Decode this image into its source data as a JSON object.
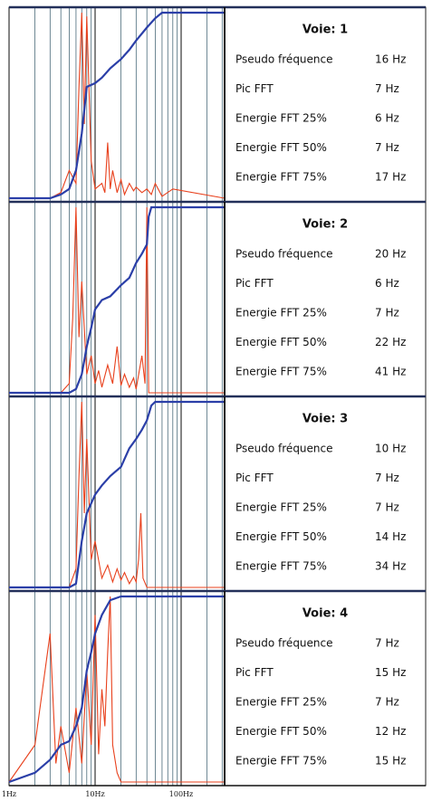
{
  "chart_data": {
    "type": "line",
    "xscale": "log",
    "xlim": [
      1,
      320
    ],
    "ylim": [
      0,
      100
    ],
    "xticks": [
      {
        "value": 1,
        "label": "1Hz"
      },
      {
        "value": 10,
        "label": "10Hz"
      },
      {
        "value": 100,
        "label": "100Hz"
      }
    ],
    "xgrid": [
      1,
      2,
      3,
      4,
      5,
      6,
      7,
      8,
      9,
      10,
      20,
      30,
      40,
      50,
      60,
      70,
      80,
      90,
      100,
      200,
      300
    ],
    "panels": [
      {
        "title": "Voie: 1",
        "series": [
          {
            "color": "#e8401c",
            "x": [
              1,
              3,
              4,
              5,
              6,
              6.5,
              7,
              7.5,
              8,
              9,
              10,
              12,
              13,
              14,
              15,
              16,
              18,
              20,
              22,
              25,
              28,
              30,
              35,
              40,
              45,
              50,
              60,
              80,
              320
            ],
            "values": [
              0,
              0,
              3,
              15,
              8,
              60,
              100,
              40,
              98,
              20,
              5,
              8,
              3,
              30,
              5,
              15,
              3,
              10,
              2,
              8,
              4,
              6,
              3,
              5,
              2,
              8,
              1,
              5,
              0
            ]
          },
          {
            "color": "#2b3fa8",
            "x": [
              1,
              3,
              4,
              5,
              6,
              7,
              8,
              10,
              12,
              15,
              20,
              25,
              30,
              40,
              50,
              60,
              320
            ],
            "values": [
              0,
              0,
              2,
              5,
              15,
              35,
              60,
              62,
              65,
              70,
              75,
              80,
              85,
              92,
              97,
              100,
              100
            ]
          }
        ],
        "table": [
          [
            "Pseudo fréquence",
            "16 Hz"
          ],
          [
            "Pic FFT",
            "7 Hz"
          ],
          [
            "Energie FFT 25%",
            "6 Hz"
          ],
          [
            "Energie FFT 50%",
            "7 Hz"
          ],
          [
            "Energie FFT 75%",
            "17 Hz"
          ]
        ]
      },
      {
        "title": "Voie: 2",
        "series": [
          {
            "color": "#e8401c",
            "x": [
              1,
              4,
              5,
              5.5,
              6,
              6.5,
              7,
              8,
              9,
              10,
              11,
              12,
              14,
              16,
              18,
              20,
              22,
              25,
              28,
              30,
              35,
              38,
              40,
              42,
              320
            ],
            "values": [
              0,
              0,
              5,
              40,
              100,
              30,
              60,
              10,
              20,
              5,
              12,
              3,
              15,
              5,
              25,
              4,
              10,
              3,
              8,
              2,
              20,
              5,
              100,
              0,
              0
            ]
          },
          {
            "color": "#2b3fa8",
            "x": [
              1,
              5,
              6,
              7,
              8,
              9,
              10,
              12,
              15,
              20,
              25,
              30,
              35,
              40,
              42,
              45,
              320
            ],
            "values": [
              0,
              0,
              2,
              10,
              25,
              35,
              45,
              50,
              52,
              58,
              62,
              70,
              75,
              80,
              95,
              100,
              100
            ]
          }
        ],
        "table": [
          [
            "Pseudo fréquence",
            "20 Hz"
          ],
          [
            "Pic FFT",
            "6 Hz"
          ],
          [
            "Energie FFT 25%",
            "7 Hz"
          ],
          [
            "Energie FFT 50%",
            "22 Hz"
          ],
          [
            "Energie FFT 75%",
            "41 Hz"
          ]
        ]
      },
      {
        "title": "Voie: 3",
        "series": [
          {
            "color": "#e8401c",
            "x": [
              1,
              5,
              6,
              6.5,
              7,
              7.5,
              8,
              9,
              10,
              12,
              14,
              16,
              18,
              20,
              22,
              25,
              28,
              30,
              32,
              34,
              36,
              40,
              320
            ],
            "values": [
              0,
              0,
              10,
              60,
              100,
              40,
              80,
              15,
              25,
              5,
              12,
              3,
              10,
              4,
              8,
              2,
              6,
              3,
              15,
              40,
              5,
              0,
              0
            ]
          },
          {
            "color": "#2b3fa8",
            "x": [
              1,
              5,
              6,
              7,
              8,
              10,
              12,
              15,
              20,
              25,
              30,
              35,
              40,
              45,
              50,
              320
            ],
            "values": [
              0,
              0,
              2,
              25,
              40,
              50,
              55,
              60,
              65,
              75,
              80,
              85,
              90,
              98,
              100,
              100
            ]
          }
        ],
        "table": [
          [
            "Pseudo fréquence",
            "10 Hz"
          ],
          [
            "Pic FFT",
            "7 Hz"
          ],
          [
            "Energie FFT 25%",
            "7 Hz"
          ],
          [
            "Energie FFT 50%",
            "14 Hz"
          ],
          [
            "Energie FFT 75%",
            "34 Hz"
          ]
        ]
      },
      {
        "title": "Voie: 4",
        "series": [
          {
            "color": "#e8401c",
            "x": [
              1,
              2,
              3,
              3.5,
              4,
              5,
              6,
              7,
              8,
              9,
              10,
              11,
              12,
              13,
              14,
              15,
              16,
              18,
              20,
              320
            ],
            "values": [
              0,
              20,
              80,
              10,
              30,
              5,
              40,
              10,
              60,
              20,
              90,
              15,
              50,
              30,
              70,
              100,
              20,
              5,
              0,
              0
            ]
          },
          {
            "color": "#2b3fa8",
            "x": [
              1,
              2,
              3,
              4,
              5,
              6,
              7,
              8,
              9,
              10,
              12,
              15,
              20,
              320
            ],
            "values": [
              0,
              5,
              12,
              20,
              22,
              30,
              40,
              60,
              70,
              80,
              90,
              98,
              100,
              100
            ]
          }
        ],
        "table": [
          [
            "Pseudo fréquence",
            "7 Hz"
          ],
          [
            "Pic FFT",
            "15 Hz"
          ],
          [
            "Energie FFT 25%",
            "7 Hz"
          ],
          [
            "Energie FFT 50%",
            "12 Hz"
          ],
          [
            "Energie FFT 75%",
            "15 Hz"
          ]
        ]
      }
    ]
  }
}
